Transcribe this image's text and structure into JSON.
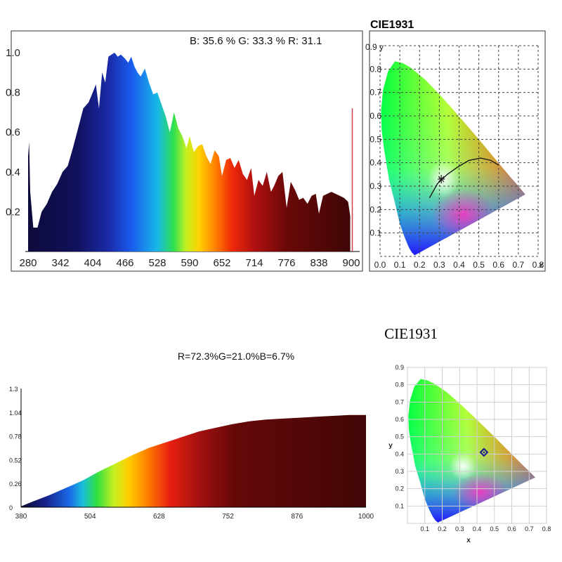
{
  "colors": {
    "axis": "#000000",
    "grid": "#888888",
    "marker_line": "#d24050",
    "locus_marker": "#1a1a8c"
  },
  "chart_data": [
    {
      "type": "area",
      "title": "",
      "header": "B: 35.6 %   G: 33.3 %   R: 31.1",
      "xlabel": "",
      "ylabel": "",
      "xlim": [
        280,
        900
      ],
      "ylim": [
        0,
        1.0
      ],
      "xticks": [
        "280",
        "342",
        "404",
        "466",
        "528",
        "590",
        "652",
        "714",
        "776",
        "838",
        "900"
      ],
      "yticks": [
        "0.2",
        "0.4",
        "0.6",
        "0.8",
        "1.0"
      ],
      "x": [
        280,
        282,
        284,
        290,
        298,
        306,
        316,
        326,
        336,
        346,
        356,
        366,
        376,
        386,
        396,
        404,
        410,
        416,
        422,
        428,
        434,
        440,
        446,
        452,
        458,
        466,
        472,
        478,
        484,
        490,
        496,
        504,
        512,
        520,
        528,
        536,
        544,
        552,
        560,
        568,
        576,
        584,
        590,
        598,
        606,
        614,
        622,
        630,
        638,
        646,
        652,
        660,
        668,
        676,
        684,
        692,
        700,
        708,
        714,
        722,
        730,
        738,
        746,
        752,
        760,
        768,
        776,
        784,
        792,
        800,
        808,
        816,
        824,
        832,
        838,
        846,
        854,
        862,
        870,
        878,
        886,
        894,
        898
      ],
      "y": [
        0.48,
        0.55,
        0.3,
        0.12,
        0.12,
        0.2,
        0.24,
        0.3,
        0.34,
        0.4,
        0.43,
        0.52,
        0.62,
        0.72,
        0.75,
        0.8,
        0.84,
        0.72,
        0.9,
        0.85,
        0.98,
        0.99,
        1.0,
        0.98,
        0.99,
        0.97,
        0.95,
        0.98,
        0.93,
        0.9,
        0.88,
        0.92,
        0.85,
        0.79,
        0.8,
        0.74,
        0.68,
        0.6,
        0.7,
        0.62,
        0.58,
        0.52,
        0.58,
        0.5,
        0.53,
        0.54,
        0.48,
        0.44,
        0.51,
        0.48,
        0.38,
        0.46,
        0.47,
        0.42,
        0.46,
        0.39,
        0.36,
        0.42,
        0.28,
        0.36,
        0.33,
        0.4,
        0.3,
        0.33,
        0.38,
        0.4,
        0.22,
        0.35,
        0.31,
        0.26,
        0.27,
        0.24,
        0.28,
        0.29,
        0.19,
        0.28,
        0.29,
        0.3,
        0.29,
        0.28,
        0.27,
        0.25,
        0.18
      ],
      "marker_x": 902,
      "marker_y": 0.72
    },
    {
      "type": "scatter",
      "title": "CIE1931",
      "xlabel": "x",
      "ylabel": "y",
      "xlim": [
        0,
        0.8
      ],
      "ylim": [
        0,
        0.9
      ],
      "xticks": [
        "0.0",
        "0.1",
        "0.2",
        "0.3",
        "0.4",
        "0.5",
        "0.6",
        "0.7",
        "0.8"
      ],
      "yticks": [
        "0.1",
        "0.2",
        "0.3",
        "0.4",
        "0.5",
        "0.6",
        "0.7",
        "0.8"
      ],
      "top_y_label": "0.9 y",
      "x_axis_end_label": "x",
      "locus_point": {
        "x": 0.31,
        "y": 0.33
      },
      "planckian": {
        "x": [
          0.25,
          0.29,
          0.34,
          0.39,
          0.45,
          0.51,
          0.56,
          0.6
        ],
        "y": [
          0.25,
          0.31,
          0.35,
          0.38,
          0.41,
          0.42,
          0.41,
          0.39
        ]
      }
    },
    {
      "type": "area",
      "title": "R=72.3%G=21.0%B=6.7%",
      "xlabel": "",
      "ylabel": "",
      "xlim": [
        380,
        1000
      ],
      "ylim": [
        0,
        1.3
      ],
      "xticks": [
        "380",
        "504",
        "628",
        "752",
        "876",
        "1000"
      ],
      "yticks": [
        "0",
        "0.26",
        "0.52",
        "0.78",
        "1.04",
        "1.3"
      ],
      "x": [
        380,
        400,
        430,
        460,
        490,
        520,
        550,
        580,
        610,
        640,
        670,
        700,
        730,
        760,
        790,
        820,
        850,
        880,
        910,
        940,
        970,
        1000
      ],
      "y": [
        0.01,
        0.06,
        0.13,
        0.21,
        0.29,
        0.39,
        0.48,
        0.57,
        0.65,
        0.71,
        0.77,
        0.83,
        0.87,
        0.91,
        0.94,
        0.96,
        0.97,
        0.98,
        0.99,
        1.0,
        1.01,
        1.01
      ]
    },
    {
      "type": "scatter",
      "title": "CIE1931",
      "xlabel": "x",
      "ylabel": "y",
      "xlim": [
        0,
        0.8
      ],
      "ylim": [
        0,
        0.9
      ],
      "xticks": [
        "0.1",
        "0.2",
        "0.3",
        "0.4",
        "0.5",
        "0.6",
        "0.7",
        "0.8"
      ],
      "yticks": [
        "0.1",
        "0.2",
        "0.3",
        "0.4",
        "0.5",
        "0.6",
        "0.7",
        "0.8",
        "0.9"
      ],
      "locus_point": {
        "x": 0.44,
        "y": 0.41
      }
    }
  ]
}
